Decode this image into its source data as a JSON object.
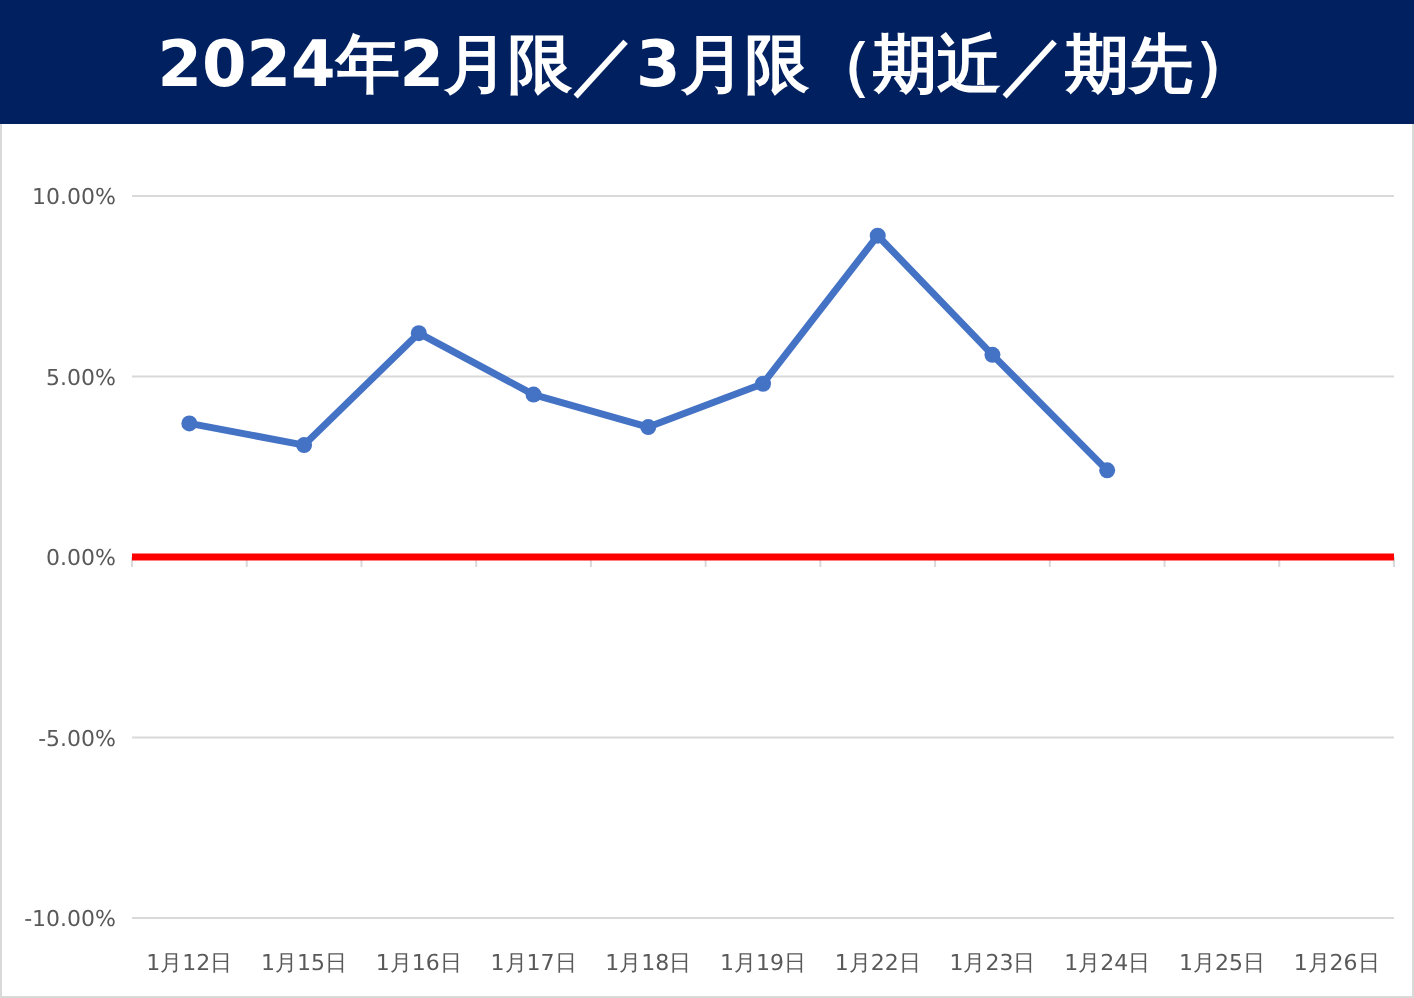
{
  "chart_data": {
    "type": "line",
    "title": "2024年2月限／3月限（期近／期先）",
    "categories": [
      "1月12日",
      "1月15日",
      "1月16日",
      "1月17日",
      "1月18日",
      "1月19日",
      "1月22日",
      "1月23日",
      "1月24日",
      "1月25日",
      "1月26日"
    ],
    "series": [
      {
        "color": "#4472c4",
        "values": [
          3.7,
          3.1,
          6.2,
          4.5,
          3.6,
          4.8,
          8.9,
          5.6,
          2.4,
          null,
          null
        ]
      }
    ],
    "ylim": [
      -10,
      10
    ],
    "yticks": [
      {
        "value": 10,
        "label": "10.00%"
      },
      {
        "value": 5,
        "label": "5.00%"
      },
      {
        "value": 0,
        "label": "0.00%"
      },
      {
        "value": -5,
        "label": "-5.00%"
      },
      {
        "value": -10,
        "label": "-10.00%"
      }
    ],
    "ref_lines": [
      {
        "axis": "y",
        "value": 0,
        "color": "#ff0000"
      }
    ],
    "grid": "y",
    "marker": "circle",
    "line_style": "solid"
  }
}
